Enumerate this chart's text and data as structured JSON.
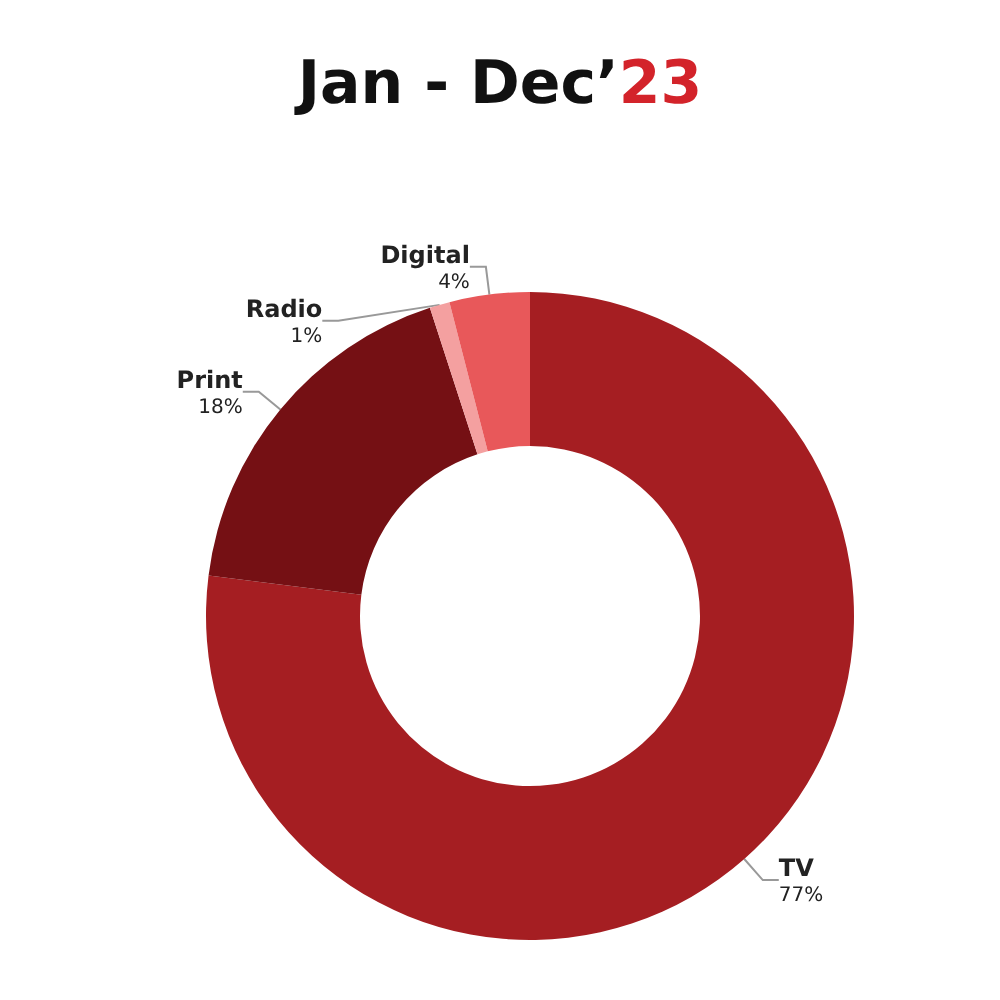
{
  "chart_data": {
    "type": "donut",
    "title": "Jan - Dec’23",
    "categories": [
      "TV",
      "Print",
      "Radio",
      "Digital"
    ],
    "values": [
      77,
      18,
      1,
      4
    ],
    "value_labels": [
      "77%",
      "18%",
      "1%",
      "4%"
    ],
    "colors": [
      "#a51e22",
      "#751014",
      "#f4a0a0",
      "#e8585a"
    ],
    "legend": false
  }
}
